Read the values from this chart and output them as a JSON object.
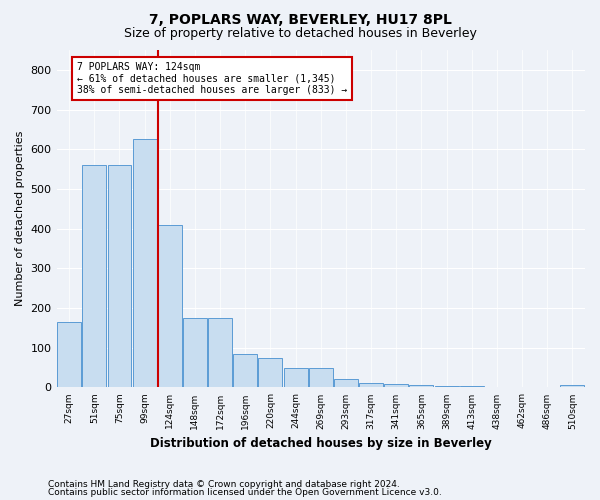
{
  "title": "7, POPLARS WAY, BEVERLEY, HU17 8PL",
  "subtitle": "Size of property relative to detached houses in Beverley",
  "xlabel": "Distribution of detached houses by size in Beverley",
  "ylabel": "Number of detached properties",
  "footnote1": "Contains HM Land Registry data © Crown copyright and database right 2024.",
  "footnote2": "Contains public sector information licensed under the Open Government Licence v3.0.",
  "bar_color": "#c8ddf0",
  "bar_edge_color": "#5b9bd5",
  "annotation_line_color": "#cc0000",
  "annotation_box_color": "#cc0000",
  "annotation_text": "7 POPLARS WAY: 124sqm\n← 61% of detached houses are smaller (1,345)\n38% of semi-detached houses are larger (833) →",
  "property_sqm": 124,
  "categories": [
    "27sqm",
    "51sqm",
    "75sqm",
    "99sqm",
    "124sqm",
    "148sqm",
    "172sqm",
    "196sqm",
    "220sqm",
    "244sqm",
    "269sqm",
    "293sqm",
    "317sqm",
    "341sqm",
    "365sqm",
    "389sqm",
    "413sqm",
    "438sqm",
    "462sqm",
    "486sqm",
    "510sqm"
  ],
  "bar_values": [
    165,
    560,
    560,
    625,
    410,
    175,
    175,
    85,
    75,
    50,
    50,
    20,
    10,
    8,
    5,
    3,
    3,
    0,
    0,
    0,
    5
  ],
  "ylim": [
    0,
    850
  ],
  "yticks": [
    0,
    100,
    200,
    300,
    400,
    500,
    600,
    700,
    800
  ],
  "background_color": "#eef2f8",
  "plot_background": "#eef2f8",
  "grid_color": "#ffffff",
  "title_fontsize": 10,
  "subtitle_fontsize": 9,
  "footnote_fontsize": 6.5
}
